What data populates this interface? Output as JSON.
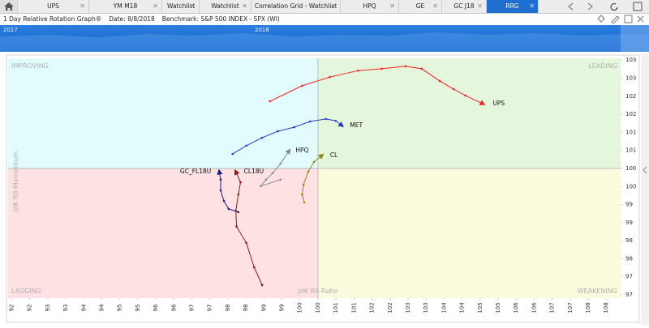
{
  "tabs": [
    "UPS",
    "YM M18",
    "Watchlist",
    "Watchlist",
    "Correlation Grid - Watchlist",
    "HPQ",
    "GE",
    "GC J18",
    "RRG"
  ],
  "header": {
    "title": "1 Day Relative Rotation Graph®",
    "date": "Date: 8/8/2018",
    "benchmark": "Benchmark: S&P 500 INDEX - SPX (WI)"
  },
  "navigator": {
    "labels": [
      "2017",
      "2018"
    ]
  },
  "chart_data": {
    "type": "line",
    "x_label": "JdK RS-Ratio",
    "y_label": "JdK RS-Momentum",
    "quadrants": {
      "improving": "IMPROVING",
      "leading": "LEADING",
      "lagging": "LAGGING",
      "weakening": "WEAKENING"
    },
    "quadrant_colors": {
      "improving": "#e2fbfd",
      "leading": "#e4f6dc",
      "lagging": "#fde1e3",
      "weakening": "#fafadc"
    },
    "center": [
      100,
      100
    ],
    "xlim": [
      91.4,
      108.4
    ],
    "ylim": [
      96.41,
      103.05
    ],
    "xticks": [
      {
        "value": 91.5,
        "label": "92"
      },
      92,
      {
        "value": 92.5,
        "label": "93"
      },
      93,
      {
        "value": 93.5,
        "label": "94"
      },
      94,
      {
        "value": 94.5,
        "label": "95"
      },
      95,
      {
        "value": 95.5,
        "label": "96"
      },
      96,
      {
        "value": 96.5,
        "label": "97"
      },
      97,
      {
        "value": 97.5,
        "label": "98"
      },
      98,
      {
        "value": 98.5,
        "label": "99"
      },
      99,
      {
        "value": 99.5,
        "label": "100"
      },
      100,
      {
        "value": 100.5,
        "label": "101"
      },
      101,
      {
        "value": 101.5,
        "label": "102"
      },
      102,
      {
        "value": 102.5,
        "label": "103"
      },
      103,
      {
        "value": 103.5,
        "label": "104"
      },
      104,
      {
        "value": 104.5,
        "label": "105"
      },
      105,
      {
        "value": 105.5,
        "label": "106"
      },
      106,
      {
        "value": 106.5,
        "label": "107"
      },
      107,
      {
        "value": 107.5,
        "label": "108"
      },
      108
    ],
    "yticks": [
      {
        "value": 96.5,
        "label": "97"
      },
      97,
      {
        "value": 97.5,
        "label": "98"
      },
      98,
      {
        "value": 98.5,
        "label": "99"
      },
      99,
      {
        "value": 99.5,
        "label": "100"
      },
      100,
      {
        "value": 100.5,
        "label": "101"
      },
      101,
      {
        "value": 101.5,
        "label": "102"
      },
      102,
      {
        "value": 102.5,
        "label": "103"
      },
      103
    ],
    "series": [
      {
        "name": "UPS",
        "color": "#ee2222",
        "x": [
          98.67,
          99.56,
          100.33,
          101.11,
          101.77,
          102.43,
          102.88,
          103.38,
          103.76,
          104.09,
          104.58
        ],
        "values": [
          101.86,
          102.29,
          102.53,
          102.71,
          102.76,
          102.83,
          102.76,
          102.42,
          102.2,
          102.02,
          101.79
        ]
      },
      {
        "name": "MET",
        "color": "#2440b8",
        "x": [
          97.63,
          98.01,
          98.45,
          98.89,
          99.34,
          99.78,
          100.22,
          100.49,
          100.66
        ],
        "values": [
          100.4,
          100.63,
          100.85,
          101.03,
          101.14,
          101.3,
          101.37,
          101.32,
          101.19
        ]
      },
      {
        "name": "HPQ",
        "color": "#8a8a8a",
        "x": [
          98.96,
          98.41,
          98.56,
          98.74,
          98.96,
          99.2
        ],
        "values": [
          99.69,
          99.51,
          99.69,
          99.87,
          100.13,
          100.49
        ]
      },
      {
        "name": "CL",
        "color": "#8a8a22",
        "x": [
          99.62,
          99.56,
          99.6,
          99.73,
          99.89,
          100.11
        ],
        "values": [
          99.06,
          99.28,
          99.55,
          99.91,
          100.18,
          100.36
        ]
      },
      {
        "name": "GC_FL18U",
        "color": "#1a1a8c",
        "x": [
          97.79,
          97.52,
          97.39,
          97.3,
          97.3,
          97.26
        ],
        "values": [
          98.79,
          98.88,
          99.1,
          99.39,
          99.69,
          99.91
        ]
      },
      {
        "name": "CL18U",
        "color": "#8b1a1a",
        "x": [
          98.45,
          98.23,
          98.01,
          97.74,
          97.72,
          97.79,
          97.85,
          97.72
        ],
        "values": [
          96.77,
          97.26,
          97.94,
          98.39,
          98.83,
          99.28,
          99.62,
          99.91
        ]
      }
    ]
  }
}
